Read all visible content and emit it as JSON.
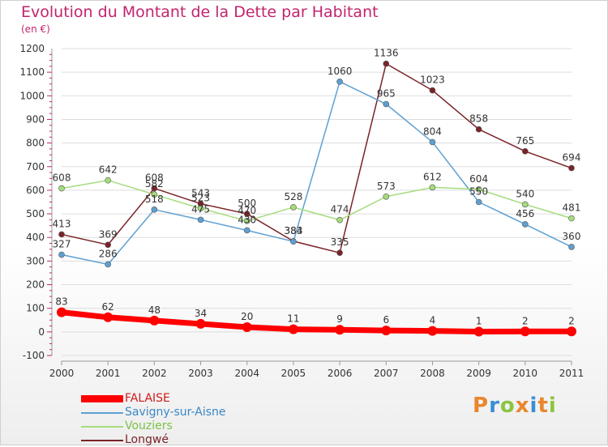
{
  "chart_data": {
    "type": "line",
    "title": "Evolution du Montant de la Dette par Habitant",
    "subtitle": "(en €)",
    "xlabel": "",
    "ylabel": "",
    "x": [
      "2000",
      "2001",
      "2002",
      "2003",
      "2004",
      "2005",
      "2006",
      "2007",
      "2008",
      "2009",
      "2010",
      "2011"
    ],
    "ylim": [
      -100,
      1200
    ],
    "yticks": [
      "-100",
      "0",
      "100",
      "200",
      "300",
      "400",
      "500",
      "600",
      "700",
      "800",
      "900",
      "1000",
      "1100",
      "1200"
    ],
    "legend_position": "bottom-left",
    "series": [
      {
        "name": "FALAISE",
        "color": "#ff0000",
        "values": [
          83,
          62,
          48,
          34,
          20,
          11,
          9,
          6,
          4,
          1,
          2,
          2
        ],
        "labels": [
          "83",
          "62",
          "48",
          "34",
          "20",
          "11",
          "9",
          "6",
          "4",
          "1",
          "2",
          "2"
        ]
      },
      {
        "name": "Savigny-sur-Aisne",
        "color": "#5da0d2",
        "values": [
          327,
          286,
          518,
          475,
          430,
          383,
          1060,
          965,
          804,
          550,
          456,
          360
        ],
        "labels": [
          "327",
          "286",
          "518",
          "475",
          "430",
          "383",
          "1060",
          "965",
          "804",
          "550",
          "456",
          "360"
        ]
      },
      {
        "name": "Vouziers",
        "color": "#a5dc7c",
        "values": [
          608,
          642,
          582,
          523,
          470,
          528,
          474,
          573,
          612,
          604,
          540,
          481
        ],
        "labels": [
          "608",
          "642",
          "582",
          "523",
          "470",
          "528",
          "474",
          "573",
          "612",
          "604",
          "540",
          "481"
        ]
      },
      {
        "name": "Longwé",
        "color": "#7a2328",
        "values": [
          413,
          369,
          608,
          543,
          500,
          384,
          335,
          1136,
          1023,
          858,
          765,
          694
        ],
        "labels": [
          "413",
          "369",
          "608",
          "543",
          "500",
          "384",
          "335",
          "1136",
          "1023",
          "858",
          "765",
          "694"
        ]
      }
    ]
  },
  "brand": {
    "letters": [
      "P",
      "r",
      "o",
      "x",
      "i",
      "t",
      "i"
    ],
    "colors": [
      "#e8872c",
      "#3a8fd4",
      "#8cc43f",
      "#e8872c",
      "#3a8fd4",
      "#e8872c",
      "#8cc43f"
    ]
  }
}
